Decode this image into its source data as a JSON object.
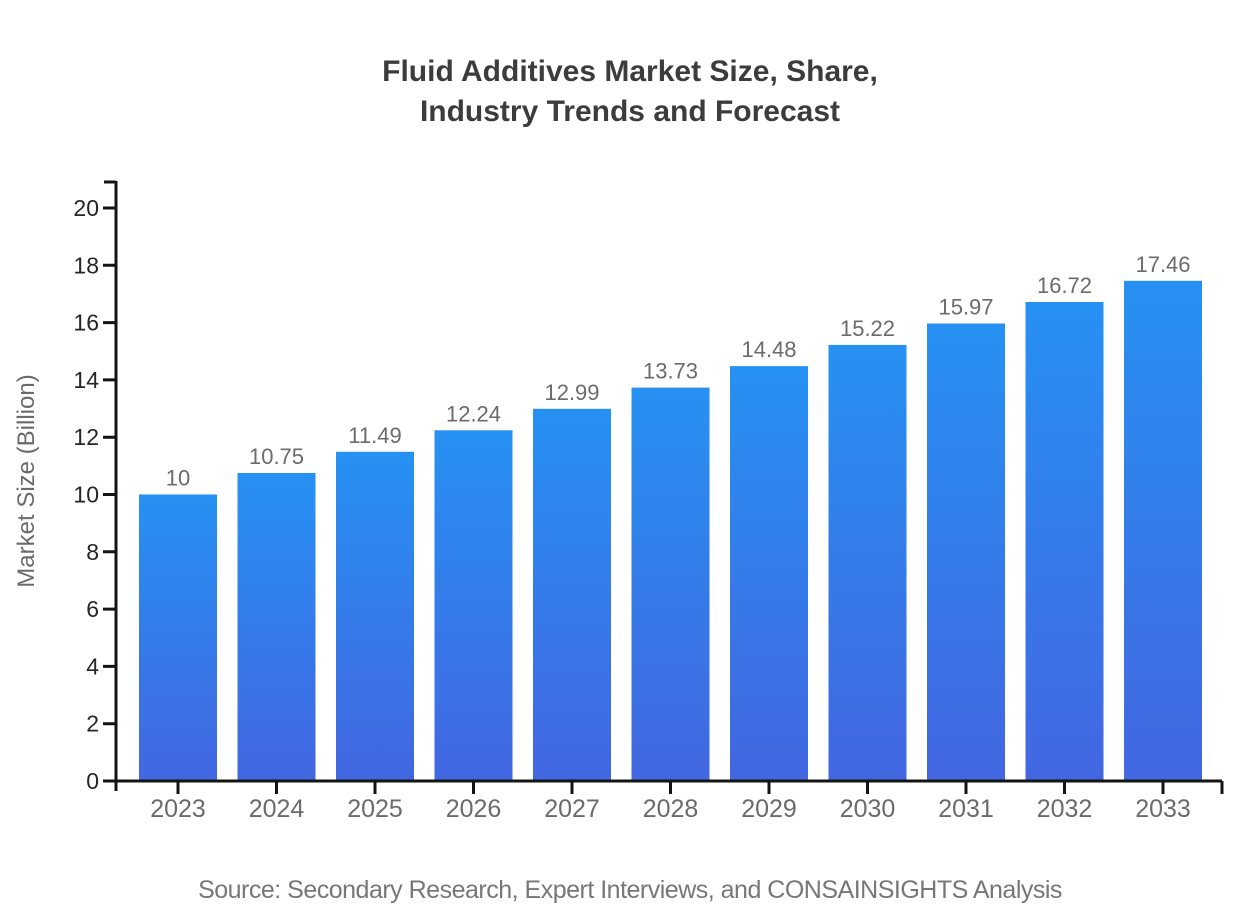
{
  "chart_data": {
    "type": "bar",
    "title": "Fluid Additives Market Size, Share, Industry Trends and Forecast",
    "title_lines": [
      "Fluid Additives Market Size, Share,",
      "Industry Trends and Forecast"
    ],
    "categories": [
      "2023",
      "2024",
      "2025",
      "2026",
      "2027",
      "2028",
      "2029",
      "2030",
      "2031",
      "2032",
      "2033"
    ],
    "values": [
      10,
      10.75,
      11.49,
      12.24,
      12.99,
      13.73,
      14.48,
      15.22,
      15.97,
      16.72,
      17.46
    ],
    "value_labels": [
      "10",
      "10.75",
      "11.49",
      "12.24",
      "12.99",
      "13.73",
      "14.48",
      "15.22",
      "15.97",
      "16.72",
      "17.46"
    ],
    "xlabel": "",
    "ylabel": "Market Size (Billion)",
    "ylim": [
      0,
      20
    ],
    "ytick_step": 2,
    "ytick_labels": [
      "0",
      "2",
      "4",
      "6",
      "8",
      "10",
      "12",
      "14",
      "16",
      "18",
      "20"
    ],
    "grid": false,
    "legend_position": "none",
    "source": "Source: Secondary Research, Expert Interviews, and CONSAINSIGHTS Analysis",
    "colors": {
      "bar_gradient_top": "#2691f3",
      "bar_gradient_bottom": "#4366e1",
      "axis": "#141414",
      "ytick_label": "#262626",
      "category_label": "#6b6b6b",
      "value_label": "#6b6b6b",
      "axis_title": "#6b6b6b",
      "title": "#3c3c3c",
      "source": "#777777"
    }
  }
}
